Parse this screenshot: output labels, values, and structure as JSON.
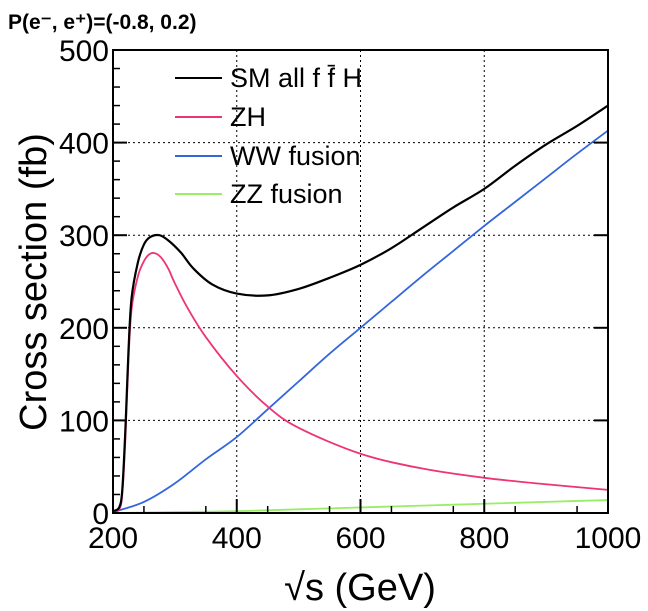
{
  "chart_data": {
    "type": "line",
    "title": "P(e⁻, e⁺)=(-0.8, 0.2)",
    "xlabel": "√s (GeV)",
    "ylabel": "Cross section (fb)",
    "xlim": [
      200,
      1000
    ],
    "ylim": [
      0,
      500
    ],
    "xticks": [
      "200",
      "400",
      "600",
      "800",
      "1000"
    ],
    "yticks": [
      "0",
      "100",
      "200",
      "300",
      "400",
      "500"
    ],
    "grid": true,
    "legend_position": "top-left",
    "series": [
      {
        "name": "SM all f f̄ H",
        "color": "#000000",
        "x": [
          200,
          210,
          215,
          220,
          225,
          230,
          240,
          250,
          260,
          275,
          290,
          310,
          330,
          360,
          400,
          450,
          500,
          550,
          600,
          650,
          700,
          750,
          800,
          850,
          900,
          950,
          1000
        ],
        "y": [
          2,
          6,
          25,
          90,
          175,
          232,
          270,
          290,
          298,
          300,
          294,
          281,
          264,
          247,
          237,
          235,
          242,
          254,
          268,
          286,
          308,
          330,
          350,
          375,
          398,
          418,
          440
        ]
      },
      {
        "name": "ZH",
        "color": "#ee3377",
        "x": [
          200,
          210,
          215,
          220,
          225,
          230,
          240,
          250,
          260,
          270,
          280,
          290,
          300,
          320,
          350,
          400,
          450,
          500,
          600,
          700,
          800,
          900,
          1000
        ],
        "y": [
          0,
          4,
          20,
          80,
          165,
          220,
          255,
          272,
          280,
          280,
          274,
          263,
          248,
          222,
          190,
          148,
          115,
          92,
          64,
          48,
          38,
          31,
          25
        ]
      },
      {
        "name": "WW fusion",
        "color": "#3366dd",
        "x": [
          200,
          250,
          300,
          350,
          400,
          450,
          500,
          550,
          600,
          650,
          700,
          750,
          800,
          850,
          900,
          950,
          1000
        ],
        "y": [
          1,
          12,
          32,
          58,
          82,
          112,
          142,
          172,
          200,
          228,
          256,
          283,
          310,
          336,
          362,
          388,
          413
        ]
      },
      {
        "name": "ZZ fusion",
        "color": "#99ee66",
        "x": [
          200,
          300,
          400,
          500,
          600,
          700,
          800,
          900,
          1000
        ],
        "y": [
          0,
          1,
          2,
          4,
          6,
          8,
          10,
          12,
          14
        ]
      }
    ]
  }
}
